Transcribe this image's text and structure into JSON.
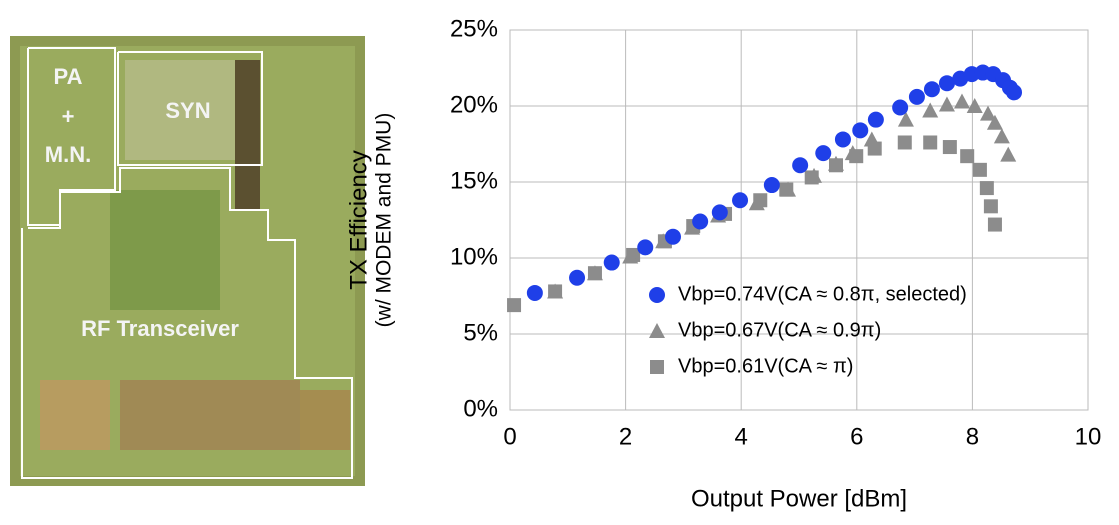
{
  "die_photo": {
    "labels": [
      "PA",
      "+",
      "M.N.",
      "SYN",
      "RF Transceiver"
    ]
  },
  "chart_data": {
    "type": "scatter",
    "y_label": [
      "TX Efficiency",
      "(w/ MODEM and PMU)"
    ],
    "x_label": "Output Power [dBm]",
    "xlim": [
      0,
      10
    ],
    "xticks": [
      0,
      2,
      4,
      6,
      8,
      10
    ],
    "ylim": [
      0,
      25
    ],
    "yticks": [
      {
        "value": 0,
        "label": "0%"
      },
      {
        "value": 5,
        "label": "5%"
      },
      {
        "value": 10,
        "label": "10%"
      },
      {
        "value": 15,
        "label": "15%"
      },
      {
        "value": 20,
        "label": "20%"
      },
      {
        "value": 25,
        "label": "25%"
      }
    ],
    "grid": true,
    "series": [
      {
        "name": "Vbp=0.74V(CA ≈ 0.8π, selected)",
        "color": "#1f3fe8",
        "marker": "circle",
        "x": [
          0.43,
          1.16,
          1.76,
          2.34,
          2.82,
          3.29,
          3.63,
          3.98,
          4.53,
          5.02,
          5.42,
          5.76,
          6.06,
          6.33,
          6.75,
          7.04,
          7.3,
          7.56,
          7.79,
          7.99,
          8.18,
          8.36,
          8.53,
          8.65,
          8.72
        ],
        "values": [
          7.7,
          8.7,
          9.7,
          10.7,
          11.4,
          12.4,
          13.0,
          13.8,
          14.8,
          16.1,
          16.9,
          17.8,
          18.4,
          19.1,
          19.9,
          20.6,
          21.1,
          21.5,
          21.8,
          22.1,
          22.2,
          22.1,
          21.7,
          21.2,
          20.9
        ]
      },
      {
        "name": "Vbp=0.67V(CA ≈ 0.9π)",
        "color": "#8c8c8c",
        "marker": "triangle",
        "x": [
          0.78,
          1.47,
          2.08,
          2.65,
          3.15,
          3.6,
          4.27,
          4.81,
          5.26,
          5.64,
          5.93,
          6.26,
          6.85,
          7.27,
          7.56,
          7.82,
          8.04,
          8.27,
          8.39,
          8.51,
          8.62
        ],
        "values": [
          7.8,
          9.0,
          10.1,
          11.1,
          12.0,
          12.8,
          13.6,
          14.5,
          15.4,
          16.2,
          16.9,
          17.8,
          19.1,
          19.7,
          20.1,
          20.3,
          20.0,
          19.5,
          18.9,
          18.0,
          16.8
        ]
      },
      {
        "name": "Vbp=0.61V(CA ≈ π)",
        "color": "#8c8c8c",
        "marker": "square",
        "x": [
          0.07,
          0.78,
          1.47,
          2.13,
          2.68,
          3.17,
          3.72,
          4.33,
          4.78,
          5.22,
          5.64,
          5.99,
          6.31,
          6.83,
          7.27,
          7.61,
          7.91,
          8.13,
          8.25,
          8.32,
          8.39
        ],
        "values": [
          6.9,
          7.8,
          9.0,
          10.2,
          11.1,
          12.1,
          12.9,
          13.8,
          14.5,
          15.3,
          16.1,
          16.7,
          17.2,
          17.6,
          17.6,
          17.3,
          16.7,
          15.8,
          14.6,
          13.4,
          12.2
        ]
      }
    ]
  }
}
